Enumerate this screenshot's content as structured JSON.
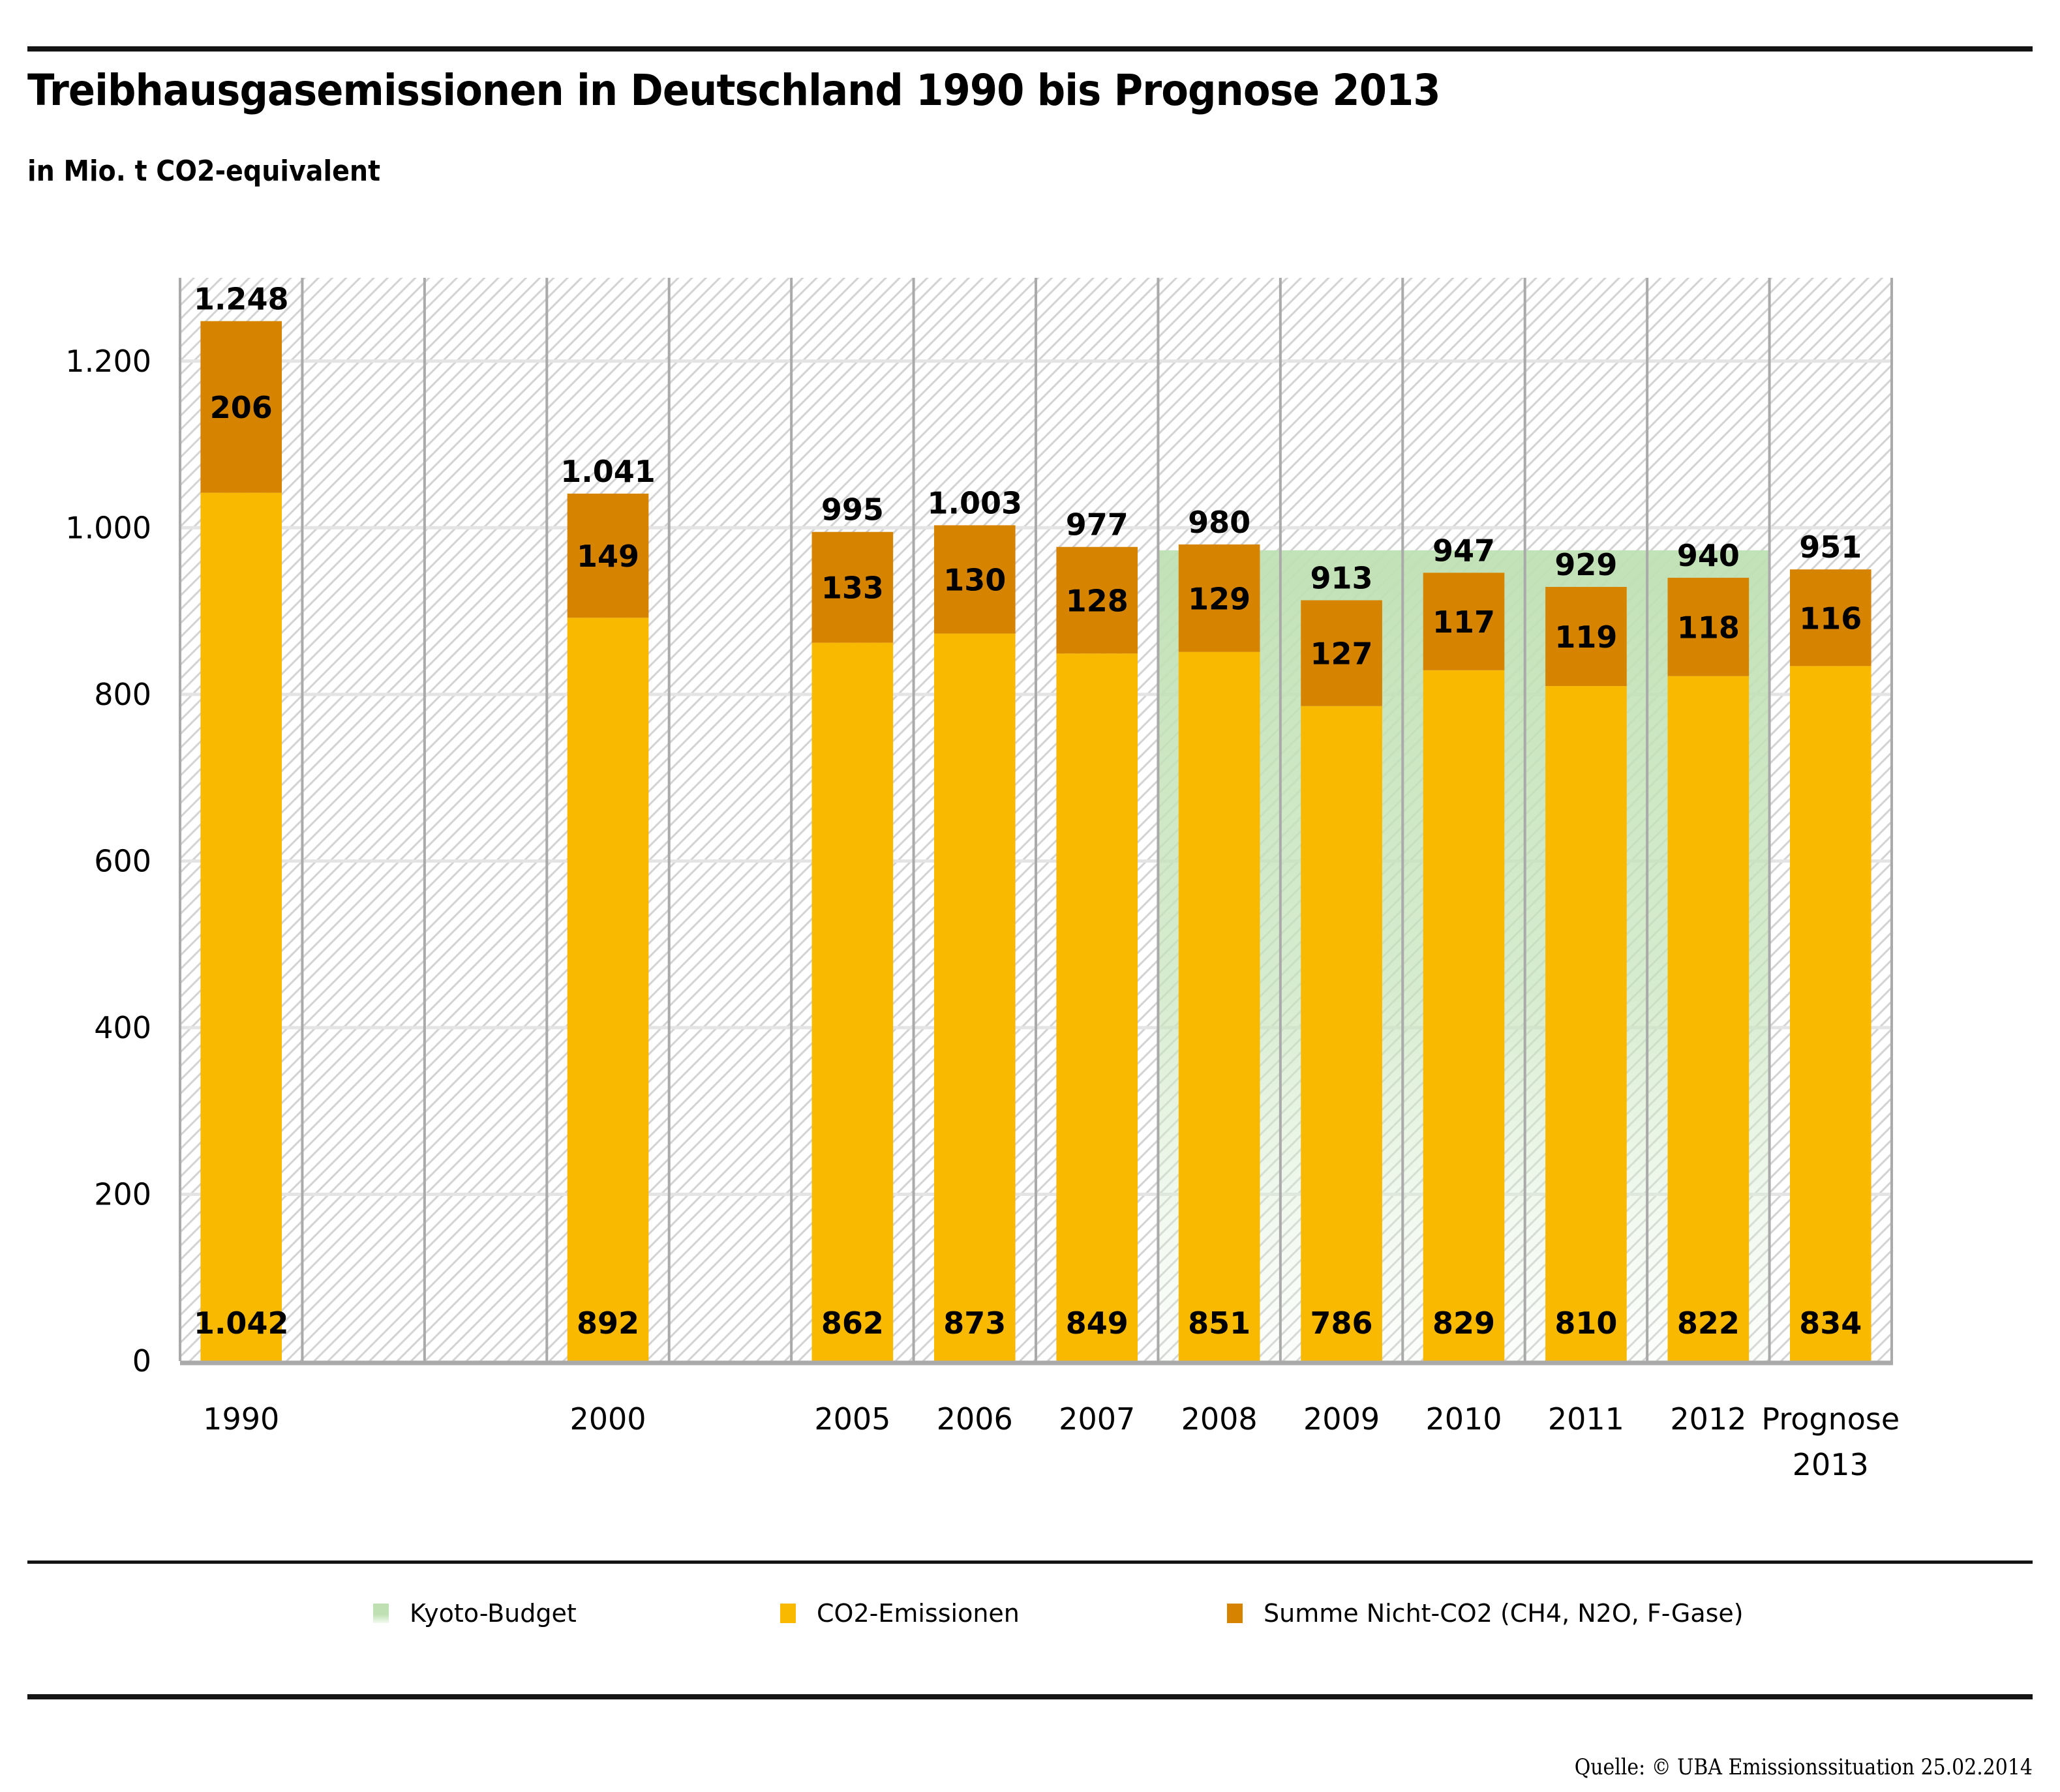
{
  "header": {
    "title": "Treibhausgasemissionen in Deutschland 1990 bis Prognose 2013",
    "subtitle": "in Mio. t CO2-equivalent"
  },
  "colors": {
    "co2": "#f9b900",
    "non_co2": "#d68400",
    "kyoto": "#bfe0b3",
    "hatch": "#d3d3d3",
    "divider": "#aaaaaa",
    "grid": "#e4e4e4"
  },
  "chart_data": {
    "type": "bar",
    "stacked": true,
    "title": "Treibhausgasemissionen in Deutschland 1990 bis Prognose 2013",
    "subtitle": "in Mio. t CO2-equivalent",
    "xlabel": "",
    "ylabel": "",
    "ylim": [
      0,
      1300
    ],
    "yticks": [
      0,
      200,
      400,
      600,
      800,
      1000,
      1200
    ],
    "ytick_labels": [
      "0",
      "200",
      "400",
      "600",
      "800",
      "1.000",
      "1.200"
    ],
    "grid": true,
    "categories": [
      "1990",
      "",
      "",
      "2000",
      "",
      "2005",
      "2006",
      "2007",
      "2008",
      "2009",
      "2010",
      "2011",
      "2012",
      "Prognose 2013"
    ],
    "category_labels": [
      [
        "1990"
      ],
      [],
      [],
      [
        "2000"
      ],
      [],
      [
        "2005"
      ],
      [
        "2006"
      ],
      [
        "2007"
      ],
      [
        "2008"
      ],
      [
        "2009"
      ],
      [
        "2010"
      ],
      [
        "2011"
      ],
      [
        "2012"
      ],
      [
        "Prognose",
        "2013"
      ]
    ],
    "series": [
      {
        "name": "CO2-Emissionen",
        "values": [
          1042,
          null,
          null,
          892,
          null,
          862,
          873,
          849,
          851,
          786,
          829,
          810,
          822,
          834
        ],
        "labels": [
          "1.042",
          "",
          "",
          "892",
          "",
          "862",
          "873",
          "849",
          "851",
          "786",
          "829",
          "810",
          "822",
          "834"
        ]
      },
      {
        "name": "Summe Nicht-CO2 (CH4, N2O, F-Gase)",
        "values": [
          206,
          null,
          null,
          149,
          null,
          133,
          130,
          128,
          129,
          127,
          117,
          119,
          118,
          116
        ],
        "labels": [
          "206",
          "",
          "",
          "149",
          "",
          "133",
          "130",
          "128",
          "129",
          "127",
          "117",
          "119",
          "118",
          "116"
        ]
      }
    ],
    "totals": [
      1248,
      null,
      null,
      1041,
      null,
      995,
      1003,
      977,
      980,
      913,
      947,
      929,
      940,
      951
    ],
    "total_labels": [
      "1.248",
      "",
      "",
      "1.041",
      "",
      "995",
      "1.003",
      "977",
      "980",
      "913",
      "947",
      "929",
      "940",
      "951"
    ],
    "kyoto_budget": {
      "name": "Kyoto-Budget",
      "value": 973,
      "from_category": "2008",
      "to_category": "2012"
    },
    "legend": [
      "Kyoto-Budget",
      "CO2-Emissionen",
      "Summe Nicht-CO2 (CH4, N2O, F-Gase)"
    ],
    "legend_position": "bottom"
  },
  "legend": {
    "kyoto": "Kyoto-Budget",
    "co2": "CO2-Emissionen",
    "non_co2": "Summe Nicht-CO2 (CH4, N2O, F-Gase)"
  },
  "footer": {
    "source": "Quelle: © UBA Emissionssituation 25.02.2014"
  }
}
